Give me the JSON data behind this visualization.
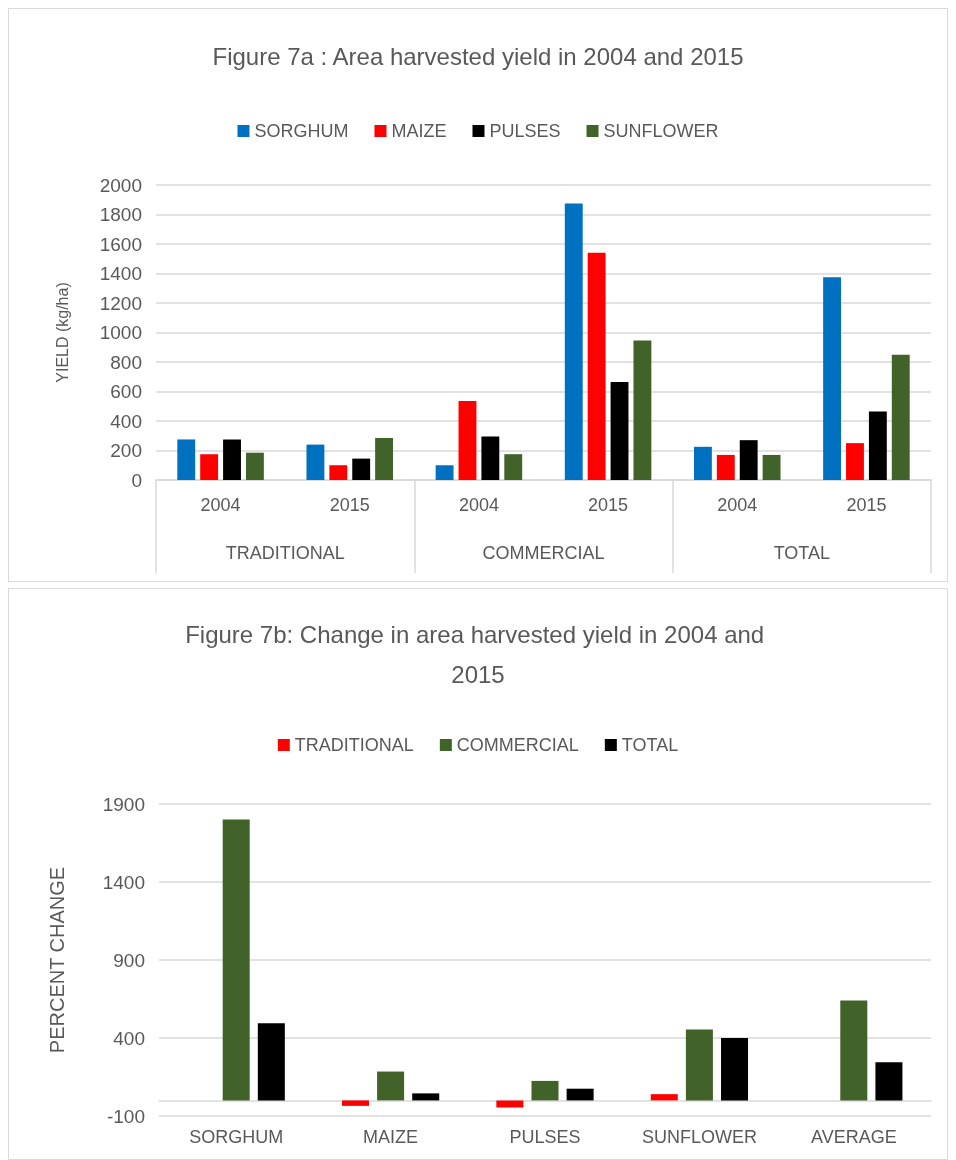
{
  "chart_data": [
    {
      "type": "bar",
      "title": "Figure 7a : Area harvested yield in 2004 and 2015",
      "ylabel": "YIELD (kg/ha)",
      "categories": [
        "2004",
        "2015",
        "2004",
        "2015",
        "2004",
        "2015"
      ],
      "annotations": [
        "TRADITIONAL",
        "COMMERCIAL",
        "TOTAL"
      ],
      "series": [
        {
          "name": "SORGHUM",
          "color": "#0070c0",
          "values": [
            275,
            240,
            100,
            1875,
            225,
            1375
          ]
        },
        {
          "name": "MAIZE",
          "color": "#ff0000",
          "values": [
            175,
            100,
            535,
            1540,
            170,
            250
          ]
        },
        {
          "name": "PULSES",
          "color": "#000000",
          "values": [
            275,
            145,
            295,
            665,
            270,
            465
          ]
        },
        {
          "name": "SUNFLOWER",
          "color": "#41632a",
          "values": [
            185,
            285,
            175,
            945,
            170,
            850
          ]
        }
      ],
      "ylim": [
        0,
        2000
      ],
      "yticks": [
        0,
        200,
        400,
        600,
        800,
        1000,
        1200,
        1400,
        1600,
        1800,
        2000
      ],
      "grid": "y",
      "legend": "top"
    },
    {
      "type": "bar",
      "title": "Figure 7b: Change in area harvested yield in 2004 and 2015",
      "ylabel": "PERCENT CHANGE",
      "categories": [
        "SORGHUM",
        "MAIZE",
        "PULSES",
        "SUNFLOWER",
        "AVERAGE"
      ],
      "series": [
        {
          "name": "TRADITIONAL",
          "color": "#ff0000",
          "values": [
            null,
            -35,
            -45,
            40,
            null
          ]
        },
        {
          "name": "COMMERCIAL",
          "color": "#41632a",
          "values": [
            1800,
            185,
            125,
            455,
            640
          ]
        },
        {
          "name": "TOTAL",
          "color": "#000000",
          "values": [
            495,
            45,
            75,
            400,
            245
          ]
        }
      ],
      "ylim": [
        -100,
        1900
      ],
      "yticks": [
        -100,
        400,
        900,
        1400,
        1900
      ],
      "grid": "y",
      "legend": "top"
    }
  ]
}
